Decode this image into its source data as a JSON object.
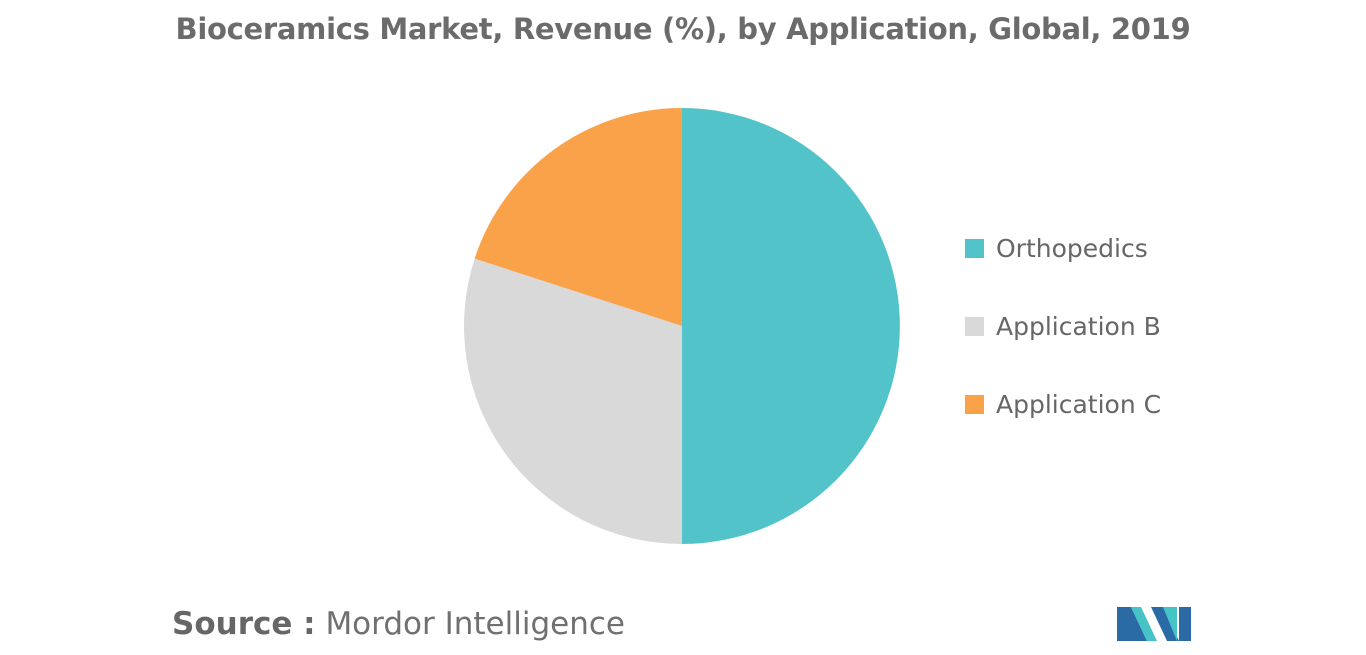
{
  "title": "Bioceramics Market, Revenue (%), by Application, Global, 2019",
  "source": {
    "label": "Source :",
    "text": "Mordor Intelligence"
  },
  "colors": {
    "orthopedics": "#52C3C9",
    "application_b": "#D9D9D9",
    "application_c": "#F9A24A",
    "title": "#6b6b6b",
    "logo_dark": "#2A6BA5",
    "logo_light": "#46C3C6"
  },
  "logo_icon": "mordor-intelligence-logo-icon",
  "chart_data": {
    "type": "pie",
    "title": "Bioceramics Market, Revenue (%), by Application, Global, 2019",
    "start_angle": "12 o'clock",
    "direction": "clockwise",
    "legend_position": "right",
    "slices": [
      {
        "name": "Orthopedics",
        "value": 50,
        "color": "#52C3C9"
      },
      {
        "name": "Application B",
        "value": 30,
        "color": "#D9D9D9"
      },
      {
        "name": "Application C",
        "value": 20,
        "color": "#F9A24A"
      }
    ]
  }
}
